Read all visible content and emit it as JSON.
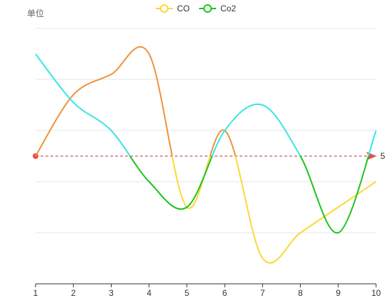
{
  "chart_data": {
    "type": "line",
    "ylabel": "单位",
    "x": [
      "1",
      "2",
      "3",
      "4",
      "5",
      "6",
      "7",
      "8",
      "9",
      "10"
    ],
    "ylim": [
      0,
      10
    ],
    "grid": true,
    "legend_position": "top-center",
    "series": [
      {
        "name": "CO",
        "color": "#fdd835",
        "values": [
          5,
          7.4,
          8.2,
          9.0,
          3.0,
          6.0,
          1.0,
          2.0,
          3.0,
          4.0
        ]
      },
      {
        "name": "Co2",
        "color": "#1ec31e",
        "values": [
          9.0,
          7.1,
          6.0,
          4.0,
          3.0,
          6.0,
          7.0,
          5.0,
          2.0,
          6.0
        ]
      }
    ],
    "threshold": {
      "value": 5,
      "label": "5",
      "line_color": "#c23531",
      "below_color": "#1ec31e",
      "above_color_co": "#f0913d",
      "above_color_co2": "#3ae5e5"
    }
  }
}
